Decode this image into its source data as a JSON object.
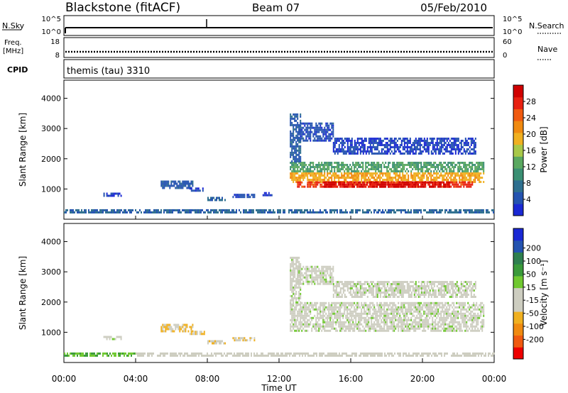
{
  "header": {
    "station": "Blackstone (fitACF)",
    "beam": "Beam 07",
    "date": "05/Feb/2010"
  },
  "strips": {
    "nsky": {
      "label": "N.Sky",
      "ticks": [
        "10^5",
        "10^0"
      ],
      "right_label": "N.Search",
      "right_ticks": [
        "10^5",
        "10^0"
      ]
    },
    "freq": {
      "label": "Freq.",
      "unit": "[MHz]",
      "ticks": [
        "18",
        "8"
      ],
      "right_label": "Nave",
      "right_ticks": [
        "60",
        "0"
      ]
    },
    "cpid": {
      "label": "CPID",
      "value": "themis (tau) 3310"
    }
  },
  "colors": {
    "power_scale": [
      "#1a28d4",
      "#2453b0",
      "#2e6f8f",
      "#3b8f73",
      "#5aa860",
      "#a8c848",
      "#f0b020",
      "#f08a10",
      "#f05a10",
      "#e82010",
      "#d00000"
    ],
    "velocity_scale": [
      "#ee0000",
      "#f05a10",
      "#f08a10",
      "#f0b020",
      "#cdcdc0",
      "#cdcdc0",
      "#70c830",
      "#3a9a3a",
      "#2e7f4f",
      "#2453b0",
      "#1a28d4"
    ]
  },
  "chart_data": [
    {
      "type": "heatmap",
      "panel": "power",
      "ylabel": "Slant Range [km]",
      "y_ticks": [
        "1000",
        "2000",
        "3000",
        "4000"
      ],
      "ylim": [
        0,
        4600
      ],
      "colorbar": {
        "label": "Power [dB]",
        "ticks": [
          "4",
          "8",
          "12",
          "16",
          "20",
          "24",
          "28"
        ],
        "range": [
          0,
          32
        ]
      },
      "regions": [
        {
          "t0": 0.0,
          "t1": 24.0,
          "r0": 200,
          "r1": 330,
          "v": 6
        },
        {
          "t0": 5.4,
          "t1": 7.2,
          "r0": 1050,
          "r1": 1280,
          "v": 5
        },
        {
          "t0": 7.0,
          "t1": 7.8,
          "r0": 950,
          "r1": 1050,
          "v": 4
        },
        {
          "t0": 2.2,
          "t1": 3.2,
          "r0": 800,
          "r1": 880,
          "v": 3
        },
        {
          "t0": 8.0,
          "t1": 9.0,
          "r0": 650,
          "r1": 740,
          "v": 6
        },
        {
          "t0": 9.4,
          "t1": 10.6,
          "r0": 760,
          "r1": 840,
          "v": 4
        },
        {
          "t0": 11.0,
          "t1": 11.6,
          "r0": 820,
          "r1": 900,
          "v": 3
        },
        {
          "t0": 12.6,
          "t1": 23.4,
          "r0": 1550,
          "r1": 1900,
          "v": 12
        },
        {
          "t0": 12.6,
          "t1": 23.4,
          "r0": 1250,
          "r1": 1550,
          "v": 20
        },
        {
          "t0": 13.0,
          "t1": 22.8,
          "r0": 1050,
          "r1": 1250,
          "v": 27
        },
        {
          "t0": 14.5,
          "t1": 21.5,
          "r0": 1100,
          "r1": 1250,
          "v": 30
        },
        {
          "t0": 13.0,
          "t1": 15.0,
          "r0": 2600,
          "r1": 3200,
          "v": 4
        },
        {
          "t0": 15.0,
          "t1": 23.0,
          "r0": 2200,
          "r1": 2700,
          "v": 3
        },
        {
          "t0": 12.6,
          "t1": 13.2,
          "r0": 1900,
          "r1": 3500,
          "v": 5
        }
      ]
    },
    {
      "type": "heatmap",
      "panel": "velocity",
      "ylabel": "Slant Range [km]",
      "y_ticks": [
        "1000",
        "2000",
        "3000",
        "4000"
      ],
      "ylim": [
        0,
        4600
      ],
      "xlabel": "Time UT",
      "x_ticks": [
        "00:00",
        "04:00",
        "08:00",
        "12:00",
        "16:00",
        "20:00",
        "00:00"
      ],
      "colorbar": {
        "label": "Velocity [m s⁻¹]",
        "ticks": [
          "200",
          "100",
          "50",
          "15",
          "-15",
          "-50",
          "-100",
          "-200"
        ],
        "range": [
          -250,
          250
        ]
      },
      "regions": [
        {
          "t0": 0.0,
          "t1": 4.0,
          "r0": 200,
          "r1": 330,
          "v": 60
        },
        {
          "t0": 4.0,
          "t1": 24.0,
          "r0": 200,
          "r1": 330,
          "v": -30
        },
        {
          "t0": 5.4,
          "t1": 7.2,
          "r0": 1050,
          "r1": 1280,
          "v": -70
        },
        {
          "t0": 7.0,
          "t1": 7.8,
          "r0": 950,
          "r1": 1050,
          "v": -60
        },
        {
          "t0": 8.0,
          "t1": 9.0,
          "r0": 650,
          "r1": 740,
          "v": -60
        },
        {
          "t0": 9.4,
          "t1": 10.6,
          "r0": 760,
          "r1": 840,
          "v": -60
        },
        {
          "t0": 2.2,
          "t1": 3.2,
          "r0": 800,
          "r1": 880,
          "v": 0
        },
        {
          "t0": 12.6,
          "t1": 23.4,
          "r0": 1050,
          "r1": 2000,
          "v": 0
        },
        {
          "t0": 13.0,
          "t1": 15.0,
          "r0": 2600,
          "r1": 3200,
          "v": 0
        },
        {
          "t0": 15.0,
          "t1": 23.0,
          "r0": 2200,
          "r1": 2700,
          "v": 0
        },
        {
          "t0": 12.6,
          "t1": 13.2,
          "r0": 1900,
          "r1": 3500,
          "v": 0
        }
      ]
    }
  ]
}
